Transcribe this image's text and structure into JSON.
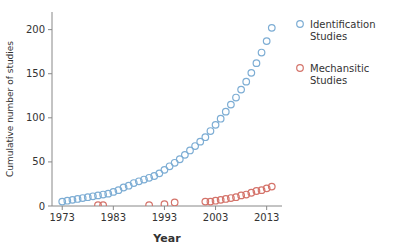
{
  "chart_data": {
    "type": "scatter",
    "xlabel": "Year",
    "ylabel": "Cumulative number of studies",
    "series": [
      {
        "name": "Identification\nStudies",
        "color": "#7dadd4",
        "x": [
          1973,
          1974,
          1975,
          1976,
          1977,
          1978,
          1979,
          1980,
          1981,
          1982,
          1983,
          1984,
          1985,
          1986,
          1987,
          1988,
          1989,
          1990,
          1991,
          1992,
          1993,
          1994,
          1995,
          1996,
          1997,
          1998,
          1999,
          2000,
          2001,
          2002,
          2003,
          2004,
          2005,
          2006,
          2007,
          2008,
          2009,
          2010,
          2011,
          2012,
          2013,
          2014
        ],
        "values": [
          5,
          6,
          7,
          8,
          9,
          10,
          11,
          12,
          13,
          14,
          16,
          18,
          21,
          23,
          26,
          28,
          30,
          32,
          34,
          37,
          41,
          45,
          49,
          53,
          58,
          63,
          68,
          73,
          78,
          85,
          92,
          99,
          107,
          115,
          123,
          132,
          141,
          151,
          162,
          174,
          187,
          202
        ]
      },
      {
        "name": "Mechansitic\nStudies",
        "color": "#d4736a",
        "x": [
          1980,
          1981,
          1990,
          1993,
          1995,
          2001,
          2002,
          2003,
          2004,
          2005,
          2006,
          2007,
          2008,
          2009,
          2010,
          2011,
          2012,
          2013,
          2014
        ],
        "values": [
          1,
          1,
          1,
          2,
          4,
          5,
          5,
          6,
          7,
          8,
          9,
          10,
          12,
          13,
          15,
          17,
          18,
          20,
          22
        ]
      }
    ],
    "xlim": [
      1971,
      2016
    ],
    "xticks": [
      1973,
      1983,
      1993,
      2003,
      2013
    ],
    "ylim": [
      0,
      220
    ],
    "yticks": [
      0,
      50,
      100,
      150,
      200
    ],
    "grid": false,
    "legend": "right"
  }
}
